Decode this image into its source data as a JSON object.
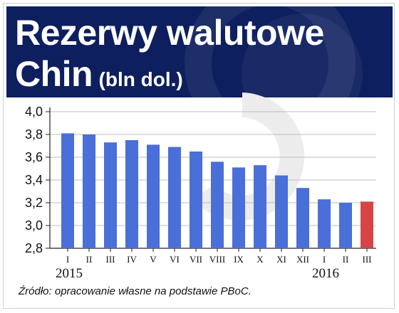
{
  "title": {
    "line1": "Rezerwy walutowe",
    "line2_main": "Chin",
    "line2_unit": "(bln dol.)"
  },
  "source": "Źródło: opracowanie własne na podstawie PBoC.",
  "colors": {
    "header_bg": "#0d1f5e",
    "bar": "#4a6fd8",
    "bar_highlight": "#d64545",
    "axis": "#222222",
    "grid": "#bcbcbc"
  },
  "chart_data": {
    "type": "bar",
    "categories": [
      "I",
      "II",
      "III",
      "IV",
      "V",
      "VI",
      "VII",
      "VIII",
      "IX",
      "X",
      "XI",
      "XII",
      "I",
      "II",
      "III"
    ],
    "values": [
      3.81,
      3.8,
      3.73,
      3.75,
      3.71,
      3.69,
      3.65,
      3.56,
      3.51,
      3.53,
      3.44,
      3.33,
      3.23,
      3.2,
      3.21
    ],
    "highlight_index": 14,
    "year_labels": [
      {
        "label": "2015",
        "category_index": 0
      },
      {
        "label": "2016",
        "category_index": 12
      }
    ],
    "y_ticks": [
      "4,0",
      "3,8",
      "3,6",
      "3,4",
      "3,2",
      "3,0",
      "2,8"
    ],
    "ylim": [
      2.8,
      4.0
    ],
    "grid": true
  }
}
